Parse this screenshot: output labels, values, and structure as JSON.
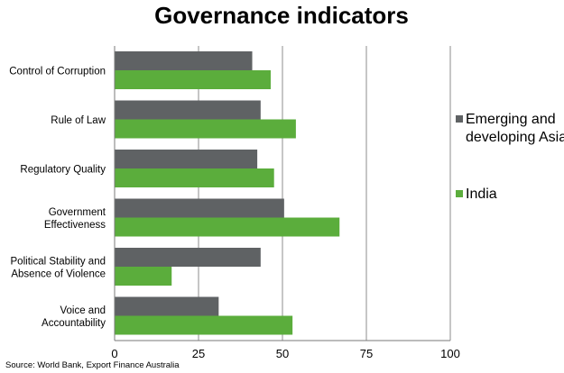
{
  "chart_data": {
    "type": "bar",
    "orientation": "horizontal",
    "title": "Governance indicators",
    "categories": [
      [
        "Control of Corruption"
      ],
      [
        "Rule of Law"
      ],
      [
        "Regulatory Quality"
      ],
      [
        "Government",
        "Effectiveness"
      ],
      [
        "Political Stability and",
        "Absence of Violence"
      ],
      [
        "Voice and",
        "Accountability"
      ]
    ],
    "series": [
      {
        "name": [
          "Emerging and",
          "developing Asia"
        ],
        "color": "#5f6264",
        "values": [
          41,
          43.5,
          42.5,
          50.5,
          43.5,
          31
        ]
      },
      {
        "name": [
          "India"
        ],
        "color": "#5bad3c",
        "values": [
          46.5,
          54,
          47.5,
          67,
          17,
          53
        ]
      }
    ],
    "xlim": [
      0,
      100
    ],
    "xticks": [
      0,
      25,
      50,
      75,
      100
    ],
    "grid": true,
    "legend_position": "right",
    "source": "Source: World Bank, Export Finance Australia"
  }
}
